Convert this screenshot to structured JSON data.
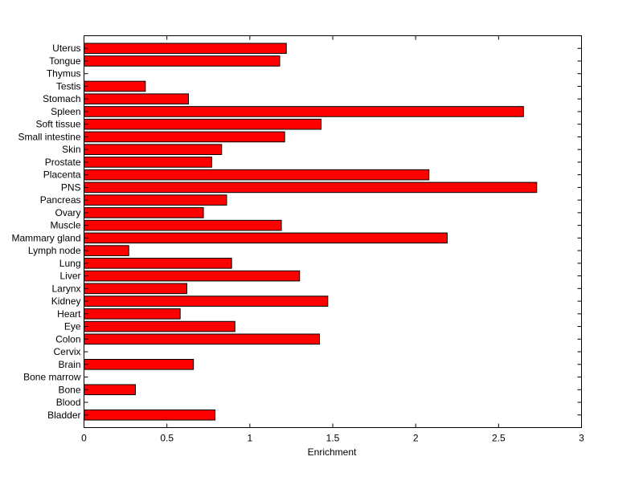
{
  "chart_data": {
    "type": "bar",
    "orientation": "horizontal",
    "xlabel": "Enrichment",
    "ylabel": "",
    "xlim": [
      0,
      3
    ],
    "xticks": [
      0,
      0.5,
      1,
      1.5,
      2,
      2.5,
      3
    ],
    "xtick_labels": [
      "0",
      "0.5",
      "1",
      "1.5",
      "2",
      "2.5",
      "3"
    ],
    "grid": false,
    "bar_color": "#ff0000",
    "bar_edge_color": "#000000",
    "categories": [
      "Bladder",
      "Blood",
      "Bone",
      "Bone marrow",
      "Brain",
      "Cervix",
      "Colon",
      "Eye",
      "Heart",
      "Kidney",
      "Larynx",
      "Liver",
      "Lung",
      "Lymph node",
      "Mammary gland",
      "Muscle",
      "Ovary",
      "Pancreas",
      "PNS",
      "Placenta",
      "Prostate",
      "Skin",
      "Small intestine",
      "Soft tissue",
      "Spleen",
      "Stomach",
      "Testis",
      "Thymus",
      "Tongue",
      "Uterus"
    ],
    "values": [
      0.79,
      0,
      0.31,
      0,
      0.66,
      0,
      1.42,
      0.91,
      0.58,
      1.47,
      0.62,
      1.3,
      0.89,
      0.27,
      2.19,
      1.19,
      0.72,
      0.86,
      2.73,
      2.08,
      0.77,
      0.83,
      1.21,
      1.43,
      2.65,
      0.63,
      0.37,
      0,
      1.18,
      1.22
    ]
  }
}
